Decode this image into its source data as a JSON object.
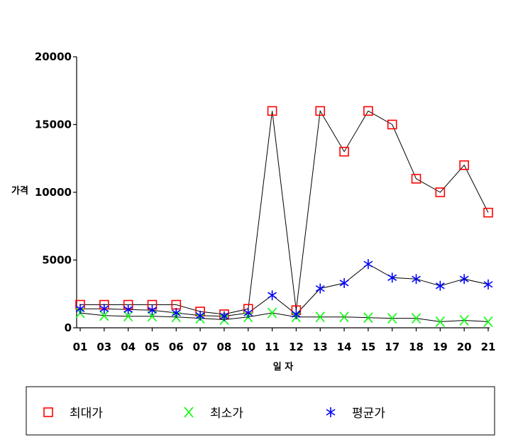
{
  "chart_data": {
    "type": "line",
    "xlabel": "일 자",
    "ylabel": "가격",
    "ylim": [
      0,
      20000
    ],
    "yticks": [
      0,
      5000,
      10000,
      15000,
      20000
    ],
    "categories": [
      "01",
      "03",
      "04",
      "05",
      "06",
      "07",
      "08",
      "10",
      "11",
      "12",
      "13",
      "14",
      "15",
      "17",
      "18",
      "19",
      "20",
      "21"
    ],
    "series": [
      {
        "name": "최대가",
        "color": "#ff0000",
        "marker": "square",
        "values": [
          1700,
          1700,
          1700,
          1700,
          1700,
          1200,
          1000,
          1400,
          16000,
          1300,
          16000,
          13000,
          16000,
          15000,
          11000,
          10000,
          12000,
          8500
        ]
      },
      {
        "name": "최소가",
        "color": "#00ff00",
        "marker": "x",
        "values": [
          1100,
          900,
          850,
          850,
          800,
          700,
          600,
          800,
          1100,
          800,
          800,
          800,
          750,
          700,
          700,
          450,
          550,
          450
        ]
      },
      {
        "name": "평균가",
        "color": "#0000ff",
        "marker": "asterisk",
        "values": [
          1400,
          1400,
          1350,
          1300,
          1100,
          900,
          850,
          1100,
          2400,
          1000,
          2900,
          3300,
          4700,
          3700,
          3600,
          3100,
          3600,
          3200
        ]
      }
    ]
  }
}
